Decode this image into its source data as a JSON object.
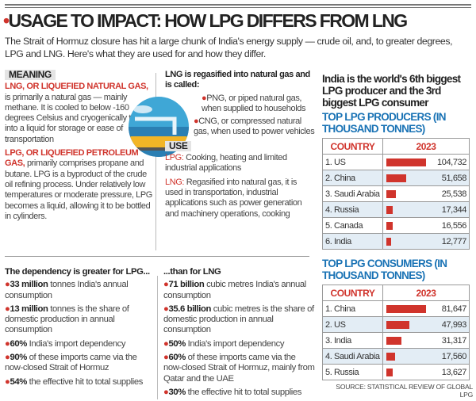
{
  "header": {
    "title": "USAGE TO IMPACT: HOW LPG DIFFERS FROM LNG",
    "subtitle": "The Strait of Hormuz closure has hit a large chunk of India's energy supply — crude oil, and, to greater degrees, LPG and LNG. Here's what they are used for and how they differ."
  },
  "meaning": {
    "tag": "MEANING",
    "lng_head": "LNG, OR LIQUEFIED NATURAL GAS,",
    "lng_text": " is primarily a natural gas — mainly methane. It is cooled to below -160 degrees Celsius and cryogenically turned into a liquid for storage or ease of transportation",
    "lpg_head": "LPG, OR LIQUEFIED PETROLEUM GAS,",
    "lpg_text": " primarily comprises propane and butane. LPG is a byproduct of the crude oil refining process. Under relatively low temperatures or moderate pressure, LPG becomes a liquid, allowing it to be bottled in cylinders."
  },
  "regas": {
    "head": "LNG is regasified into natural gas and is called:",
    "items": [
      "PNG, or piped natural gas, when supplied to households",
      "CNG, or compressed natural gas, when used to power vehicles"
    ]
  },
  "use": {
    "tag": "USE",
    "lpg_label": "LPG:",
    "lpg_text": " Cooking, heating and limited industrial applications",
    "lng_label": "LNG:",
    "lng_text": " Regasified into natural gas, it is used in transportation, industrial applications such as power generation and machinery operations, cooking"
  },
  "lpg_dep": {
    "head": "The dependency is greater for LPG...",
    "items": [
      {
        "b": "33 million",
        "t": " tonnes India's annual consumption"
      },
      {
        "b": "13 million",
        "t": " tonnes is the share of domestic production in annual consumption"
      },
      {
        "b": "60%",
        "t": " India's import dependency"
      },
      {
        "b": "90%",
        "t": " of these imports came via the now-closed Strait of Hormuz"
      },
      {
        "b": "54%",
        "t": " the effective hit to total supplies"
      }
    ]
  },
  "lng_dep": {
    "head": "...than for LNG",
    "items": [
      {
        "b": "71 billion",
        "t": " cubic metres India's annual consumption"
      },
      {
        "b": "35.6 billion",
        "t": " cubic metres is the share of domestic production in annual consumption"
      },
      {
        "b": "50%",
        "t": " India's import dependency"
      },
      {
        "b": "60%",
        "t": " of these imports came via the now-closed Strait of Hormuz, mainly from Qatar and the UAE"
      },
      {
        "b": "30%",
        "t": " the effective hit to total supplies"
      }
    ]
  },
  "right": {
    "head": "India is the world's 6th biggest LPG producer and the 3rd biggest LPG consumer",
    "source": "SOURCE: STATISTICAL REVIEW OF GLOBAL LPG"
  },
  "colors": {
    "accent": "#d0342c",
    "blue": "#1a73b5",
    "row": "#e3edf5"
  },
  "chart_data": [
    {
      "type": "bar",
      "title": "TOP LPG PRODUCERS (IN THOUSAND TONNES)",
      "col_headers": [
        "COUNTRY",
        "2023"
      ],
      "categories": [
        "1. US",
        "2. China",
        "3. Saudi Arabia",
        "4. Russia",
        "5. Canada",
        "6. India"
      ],
      "values": [
        104732,
        51658,
        25538,
        17344,
        16556,
        12777
      ],
      "labels": [
        "104,732",
        "51,658",
        "25,538",
        "17,344",
        "16,556",
        "12,777"
      ]
    },
    {
      "type": "bar",
      "title": "TOP LPG CONSUMERS (IN THOUSAND TONNES)",
      "col_headers": [
        "COUNTRY",
        "2023"
      ],
      "categories": [
        "1. China",
        "2. US",
        "3. India",
        "4. Saudi Arabia",
        "5. Russia"
      ],
      "values": [
        81647,
        47993,
        31317,
        17560,
        13627
      ],
      "labels": [
        "81,647",
        "47,993",
        "31,317",
        "17,560",
        "13,627"
      ]
    }
  ]
}
